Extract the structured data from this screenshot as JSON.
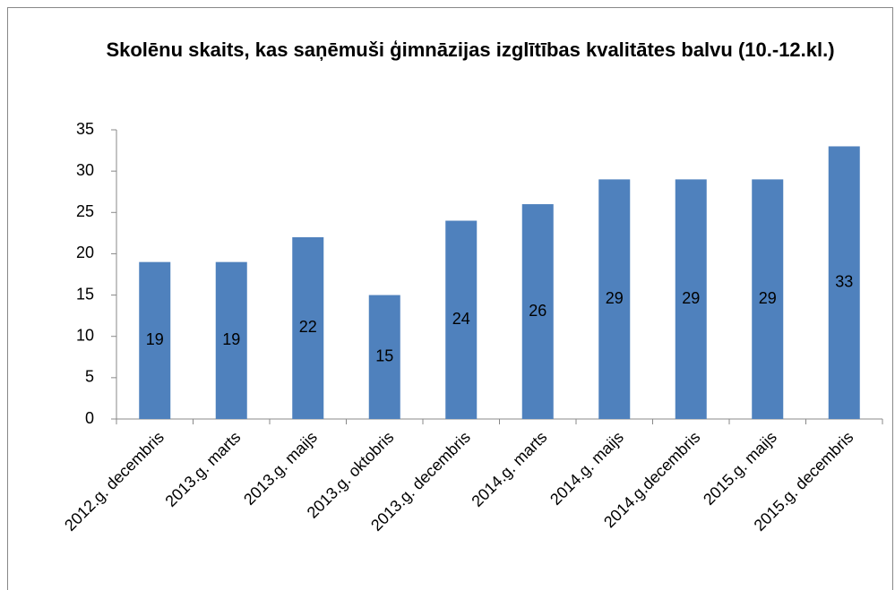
{
  "chart_data": {
    "type": "bar",
    "title": "Skolēnu skaits, kas saņēmuši ģimnāzijas izglītības kvalitātes balvu (10.-12.kl.)",
    "categories": [
      "2012.g. decembris",
      "2013.g. marts",
      "2013.g. maijs",
      "2013.g. oktobris",
      "2013.g. decembris",
      "2014.g. marts",
      "2014.g. maijs",
      "2014.g.decembris",
      "2015.g. maijs",
      "2015.g. decembris"
    ],
    "values": [
      19,
      19,
      22,
      15,
      24,
      26,
      29,
      29,
      29,
      33
    ],
    "color": "#4f81bd",
    "ylim": [
      0,
      35
    ],
    "yticks": [
      0,
      5,
      10,
      15,
      20,
      25,
      30,
      35
    ],
    "grid": false
  }
}
